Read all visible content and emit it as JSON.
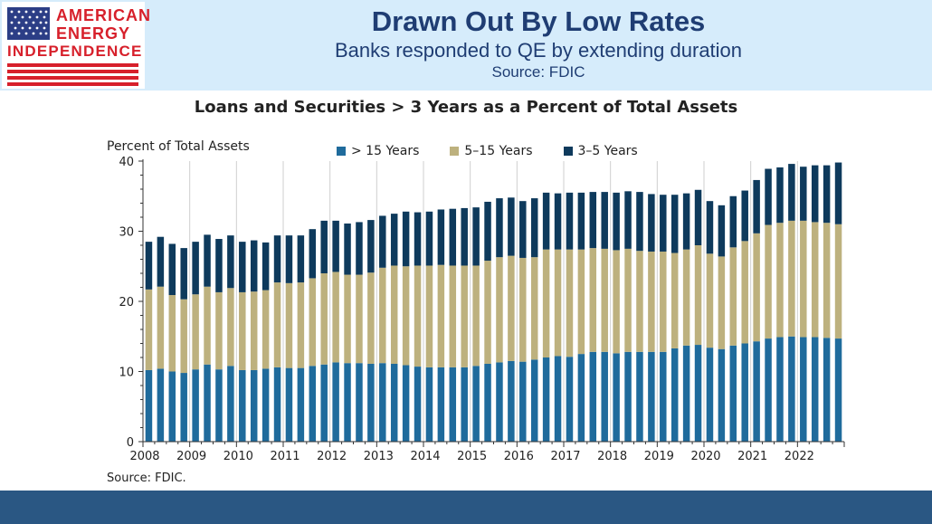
{
  "logo": {
    "line1": "AMERICAN",
    "line2": "ENERGY",
    "line3": "INDEPENDENCE"
  },
  "header": {
    "title": "Drawn Out By Low Rates",
    "subtitle": "Banks responded to QE by extending duration",
    "source": "Source: FDIC"
  },
  "colors": {
    "banner": "#d6ecfb",
    "title": "#1f3d73",
    "logo_red": "#d7202b",
    "flag_blue": "#2c3e86",
    "footer": "#2a5783",
    "gt15": "#1f6b9c",
    "mid": "#bdb17e",
    "short": "#0e3a5c"
  },
  "footer_text": "Source: FDIC.",
  "chart_data": {
    "type": "bar",
    "stacked": true,
    "title": "Loans and Securities > 3 Years as a Percent of Total Assets",
    "ylabel": "Percent of Total Assets",
    "ylim": [
      0,
      40
    ],
    "yticks": [
      0,
      10,
      20,
      30,
      40
    ],
    "xticks": [
      "2008",
      "2009",
      "2010",
      "2011",
      "2012",
      "2013",
      "2014",
      "2015",
      "2016",
      "2017",
      "2018",
      "2019",
      "2020",
      "2021",
      "2022"
    ],
    "legend_position": "top",
    "grid": "vertical year dividers",
    "quarters_start": "2008 Q1",
    "series": [
      {
        "name": "> 15 Years",
        "color": "#1f6b9c",
        "values": [
          10.2,
          10.4,
          10.0,
          9.8,
          10.3,
          11.0,
          10.3,
          10.8,
          10.2,
          10.2,
          10.4,
          10.6,
          10.5,
          10.5,
          10.8,
          11.0,
          11.3,
          11.2,
          11.2,
          11.1,
          11.2,
          11.1,
          10.9,
          10.7,
          10.6,
          10.6,
          10.6,
          10.6,
          10.8,
          11.1,
          11.3,
          11.5,
          11.4,
          11.7,
          12.0,
          12.2,
          12.1,
          12.5,
          12.8,
          12.8,
          12.6,
          12.8,
          12.8,
          12.8,
          12.8,
          13.3,
          13.7,
          13.8,
          13.4,
          13.2,
          13.7,
          14.0,
          14.3,
          14.7,
          14.9,
          15.0,
          14.9,
          14.9,
          14.8,
          14.7
        ]
      },
      {
        "name": "5–15 Years",
        "color": "#bdb17e",
        "values": [
          11.5,
          11.7,
          10.9,
          10.5,
          10.7,
          11.1,
          11.0,
          11.1,
          11.1,
          11.2,
          11.2,
          12.1,
          12.1,
          12.2,
          12.5,
          13.0,
          12.9,
          12.6,
          12.6,
          13.0,
          13.6,
          14.0,
          14.1,
          14.4,
          14.5,
          14.6,
          14.5,
          14.5,
          14.3,
          14.7,
          15.0,
          15.0,
          14.8,
          14.6,
          15.4,
          15.2,
          15.3,
          14.9,
          14.8,
          14.7,
          14.7,
          14.7,
          14.4,
          14.3,
          14.3,
          13.6,
          13.7,
          14.2,
          13.4,
          13.2,
          14.0,
          14.6,
          15.4,
          16.2,
          16.3,
          16.5,
          16.6,
          16.4,
          16.4,
          16.3
        ]
      },
      {
        "name": "3–5 Years",
        "color": "#0e3a5c",
        "values": [
          6.8,
          7.1,
          7.3,
          7.3,
          7.5,
          7.4,
          7.6,
          7.5,
          7.2,
          7.3,
          6.8,
          6.7,
          6.8,
          6.7,
          7.0,
          7.5,
          7.3,
          7.3,
          7.5,
          7.5,
          7.4,
          7.4,
          7.8,
          7.6,
          7.7,
          7.9,
          8.1,
          8.2,
          8.3,
          8.4,
          8.4,
          8.3,
          8.1,
          8.4,
          8.1,
          8.0,
          8.1,
          8.1,
          8.0,
          8.1,
          8.2,
          8.2,
          8.4,
          8.2,
          8.1,
          8.3,
          8.0,
          7.9,
          7.5,
          7.3,
          7.3,
          7.2,
          7.6,
          8.0,
          7.9,
          8.1,
          7.7,
          8.1,
          8.2,
          8.8
        ]
      }
    ]
  }
}
